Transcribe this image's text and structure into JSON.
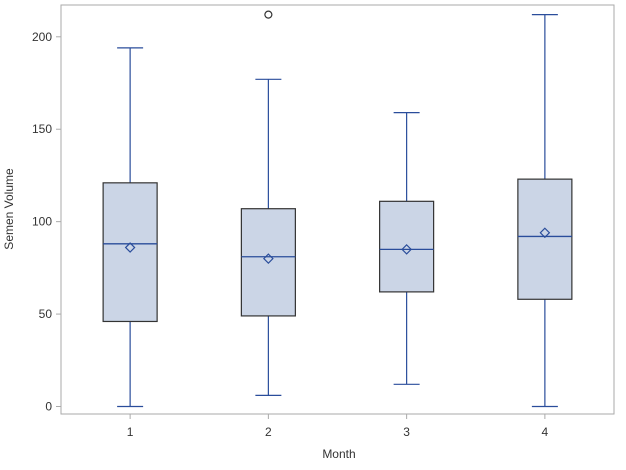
{
  "chart_data": {
    "type": "box",
    "xlabel": "Month",
    "ylabel": "Semen Volume",
    "ylim": [
      -5,
      218
    ],
    "yticks": [
      0,
      50,
      100,
      150,
      200
    ],
    "grid": false,
    "legend": "none",
    "colors": {
      "box_fill": "#cbd5e6",
      "box_edge": "#333333",
      "whisker": "#2a4d9b",
      "median": "#2a4d9b",
      "mean_marker": "#2a4d9b",
      "outlier": "#333333",
      "frame": "#aaaaaa"
    },
    "categories": [
      "1",
      "2",
      "3",
      "4"
    ],
    "boxes": [
      {
        "category": "1",
        "min": 0,
        "q1": 46,
        "median": 88,
        "q3": 121,
        "max": 194,
        "mean": 86,
        "outliers": []
      },
      {
        "category": "2",
        "min": 6,
        "q1": 49,
        "median": 81,
        "q3": 107,
        "max": 177,
        "mean": 80,
        "outliers": [
          212
        ]
      },
      {
        "category": "3",
        "min": 12,
        "q1": 62,
        "median": 85,
        "q3": 111,
        "max": 159,
        "mean": 85,
        "outliers": []
      },
      {
        "category": "4",
        "min": 0,
        "q1": 58,
        "median": 92,
        "q3": 123,
        "max": 212,
        "mean": 94,
        "outliers": []
      }
    ]
  }
}
